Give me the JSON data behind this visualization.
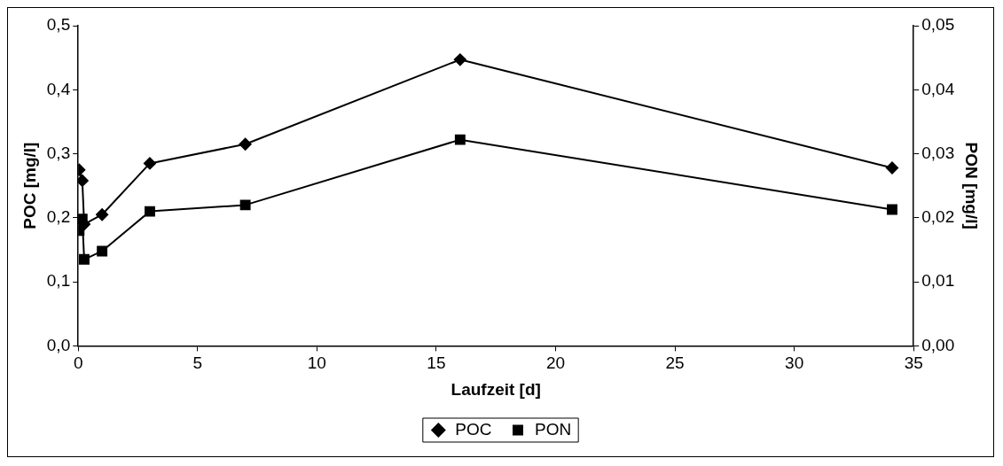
{
  "chart_data": {
    "type": "line",
    "xlabel": "Laufzeit [d]",
    "ylabel": "POC [mg/l]",
    "y2label": "PON [mg/l]",
    "x": [
      0.04,
      0.17,
      0.25,
      1,
      3,
      7,
      16,
      34.1
    ],
    "series": [
      {
        "name": "POC",
        "color": "#000000",
        "marker": "diamond",
        "values": [
          0.275,
          0.258,
          0.19,
          0.205,
          0.285,
          0.315,
          0.447,
          0.278
        ]
      },
      {
        "name": "PON",
        "color": "#000000",
        "marker": "square",
        "axis": "y2",
        "values": [
          0.018,
          0.0198,
          0.0135,
          0.0148,
          0.021,
          0.022,
          0.0322,
          0.0213
        ]
      }
    ],
    "xlim": [
      0,
      35
    ],
    "xticks": [
      0,
      5,
      10,
      15,
      20,
      25,
      30,
      35
    ],
    "ylim": [
      0,
      0.5
    ],
    "yticks": [
      {
        "value": 0,
        "label": "0,0"
      },
      {
        "value": 0.1,
        "label": "0,1"
      },
      {
        "value": 0.2,
        "label": "0,2"
      },
      {
        "value": 0.3,
        "label": "0,3"
      },
      {
        "value": 0.4,
        "label": "0,4"
      },
      {
        "value": 0.5,
        "label": "0,5"
      }
    ],
    "y2lim": [
      0,
      0.05
    ],
    "y2ticks": [
      {
        "value": 0,
        "label": "0,00"
      },
      {
        "value": 0.01,
        "label": "0,01"
      },
      {
        "value": 0.02,
        "label": "0,02"
      },
      {
        "value": 0.03,
        "label": "0,03"
      },
      {
        "value": 0.04,
        "label": "0,04"
      },
      {
        "value": 0.05,
        "label": "0,05"
      }
    ],
    "grid": false,
    "legend": "bottom",
    "line_style": "solid"
  }
}
